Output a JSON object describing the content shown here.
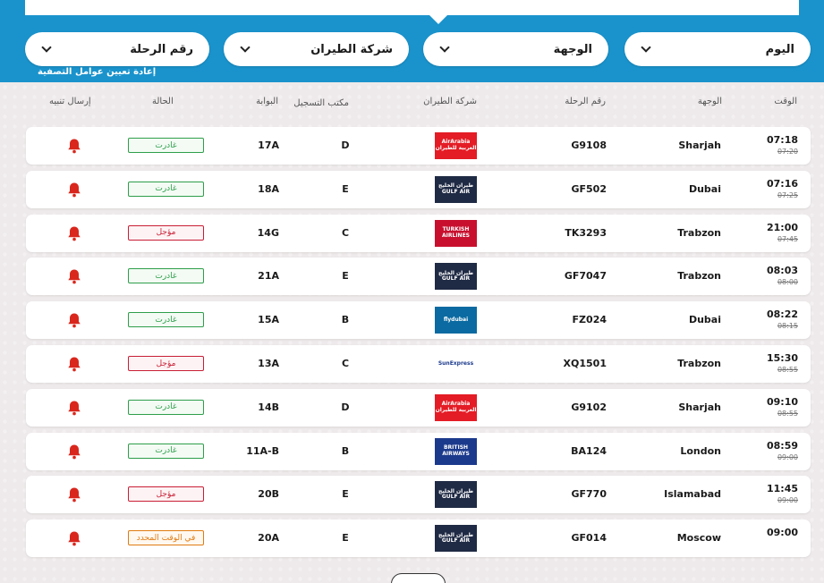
{
  "filters": {
    "day": "اليوم",
    "destination": "الوجهة",
    "airline": "شركة الطيران",
    "flight_number": "رقم الرحلة",
    "reset_label": "إعادة تعيين عوامل التصفية"
  },
  "columns": {
    "time": "الوقت",
    "destination": "الوجهة",
    "flight_number": "رقم الرحلة",
    "airline": "شركة الطيران",
    "checkin_desk": "مكتب التسجيل",
    "gate": "البوابة",
    "status": "الحالة",
    "send_alert": "إرسال تنبيه"
  },
  "colors": {
    "header_blue": "#1a93cc",
    "departed": "#2e9e4a",
    "delayed": "#c81e35",
    "on_time": "#e07b13",
    "bell": "#d9271d"
  },
  "flights": [
    {
      "time": "07:18",
      "scheduled": "07:20",
      "destination": "Sharjah",
      "flight": "G9108",
      "airline_logo": "airarabia",
      "desk": "D",
      "gate": "17A",
      "status": "غادرت",
      "status_type": "departed"
    },
    {
      "time": "07:16",
      "scheduled": "07:25",
      "destination": "Dubai",
      "flight": "GF502",
      "airline_logo": "gulfair",
      "desk": "E",
      "gate": "18A",
      "status": "غادرت",
      "status_type": "departed"
    },
    {
      "time": "21:00",
      "scheduled": "07:45",
      "destination": "Trabzon",
      "flight": "TK3293",
      "airline_logo": "turkish",
      "desk": "C",
      "gate": "14G",
      "status": "مؤجل",
      "status_type": "delayed"
    },
    {
      "time": "08:03",
      "scheduled": "08:00",
      "destination": "Trabzon",
      "flight": "GF7047",
      "airline_logo": "gulfair",
      "desk": "E",
      "gate": "21A",
      "status": "غادرت",
      "status_type": "departed"
    },
    {
      "time": "08:22",
      "scheduled": "08:15",
      "destination": "Dubai",
      "flight": "FZ024",
      "airline_logo": "flydubai",
      "desk": "B",
      "gate": "15A",
      "status": "غادرت",
      "status_type": "departed"
    },
    {
      "time": "15:30",
      "scheduled": "08:55",
      "destination": "Trabzon",
      "flight": "XQ1501",
      "airline_logo": "sunexpress",
      "desk": "C",
      "gate": "13A",
      "status": "مؤجل",
      "status_type": "delayed"
    },
    {
      "time": "09:10",
      "scheduled": "08:55",
      "destination": "Sharjah",
      "flight": "G9102",
      "airline_logo": "airarabia",
      "desk": "D",
      "gate": "14B",
      "status": "غادرت",
      "status_type": "departed"
    },
    {
      "time": "08:59",
      "scheduled": "09:00",
      "destination": "London",
      "flight": "BA124",
      "airline_logo": "british",
      "desk": "B",
      "gate": "11A-B",
      "status": "غادرت",
      "status_type": "departed"
    },
    {
      "time": "11:45",
      "scheduled": "09:00",
      "destination": "Islamabad",
      "flight": "GF770",
      "airline_logo": "gulfair",
      "desk": "E",
      "gate": "20B",
      "status": "مؤجل",
      "status_type": "delayed"
    },
    {
      "time": "09:00",
      "scheduled": "",
      "destination": "Moscow",
      "flight": "GF014",
      "airline_logo": "gulfair",
      "desk": "E",
      "gate": "20A",
      "status": "في الوقت المحدد",
      "status_type": "on_time"
    }
  ],
  "logos": {
    "airarabia": {
      "line1": "AirArabia",
      "line2": "العربية للطيران",
      "bg": "#e41c25"
    },
    "gulfair": {
      "line1": "طيران الخليج",
      "line2": "GULF AIR",
      "bg": "#1f2a44"
    },
    "turkish": {
      "line1": "TURKISH",
      "line2": "AIRLINES",
      "bg": "#c8102e"
    },
    "flydubai": {
      "line1": "flydubai",
      "line2": "",
      "bg": "#0a6aa1"
    },
    "sunexpress": {
      "line1": "SunExpress",
      "line2": "",
      "bg": "#ffffff"
    },
    "british": {
      "line1": "BRITISH AIRWAYS",
      "line2": "",
      "bg": "#1b3a8c"
    }
  }
}
